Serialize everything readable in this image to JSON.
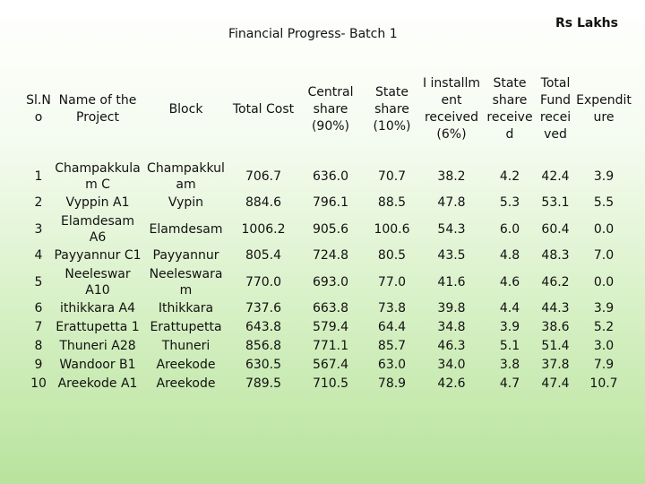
{
  "header": {
    "title": "Financial  Progress- Batch 1",
    "units": "Rs Lakhs"
  },
  "table": {
    "columns": [
      "Sl.N o",
      "Name of the Project",
      "Block",
      "Total Cost",
      "Central share (90%)",
      "State share (10%)",
      "I installm ent received (6%)",
      "State share receive d",
      "Total Fund recei ved",
      "Expendit ure"
    ],
    "rows": [
      [
        "1",
        "Champakkula m C",
        "Champakkul am",
        "706.7",
        "636.0",
        "70.7",
        "38.2",
        "4.2",
        "42.4",
        "3.9"
      ],
      [
        "2",
        "Vyppin A1",
        "Vypin",
        "884.6",
        "796.1",
        "88.5",
        "47.8",
        "5.3",
        "53.1",
        "5.5"
      ],
      [
        "3",
        "Elamdesam A6",
        "Elamdesam",
        "1006.2",
        "905.6",
        "100.6",
        "54.3",
        "6.0",
        "60.4",
        "0.0"
      ],
      [
        "4",
        "Payyannur C1",
        "Payyannur",
        "805.4",
        "724.8",
        "80.5",
        "43.5",
        "4.8",
        "48.3",
        "7.0"
      ],
      [
        "5",
        "Neeleswar A10",
        "Neeleswara m",
        "770.0",
        "693.0",
        "77.0",
        "41.6",
        "4.6",
        "46.2",
        "0.0"
      ],
      [
        "6",
        "ithikkara A4",
        "Ithikkara",
        "737.6",
        "663.8",
        "73.8",
        "39.8",
        "4.4",
        "44.3",
        "3.9"
      ],
      [
        "7",
        "Erattupetta 1",
        "Erattupetta",
        "643.8",
        "579.4",
        "64.4",
        "34.8",
        "3.9",
        "38.6",
        "5.2"
      ],
      [
        "8",
        "Thuneri A28",
        "Thuneri",
        "856.8",
        "771.1",
        "85.7",
        "46.3",
        "5.1",
        "51.4",
        "3.0"
      ],
      [
        "9",
        "Wandoor B1",
        "Areekode",
        "630.5",
        "567.4",
        "63.0",
        "34.0",
        "3.8",
        "37.8",
        "7.9"
      ],
      [
        "10",
        "Areekode A1",
        "Areekode",
        "789.5",
        "710.5",
        "78.9",
        "42.6",
        "4.7",
        "47.4",
        "10.7"
      ]
    ]
  }
}
